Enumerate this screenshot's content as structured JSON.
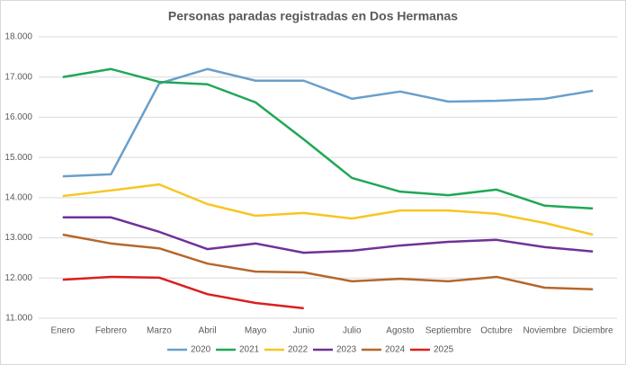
{
  "chart_data": {
    "type": "line",
    "title": "Personas paradas registradas en Dos Hermanas",
    "categories": [
      "Enero",
      "Febrero",
      "Marzo",
      "Abril",
      "Mayo",
      "Junio",
      "Julio",
      "Agosto",
      "Septiembre",
      "Octubre",
      "Noviembre",
      "Diciembre"
    ],
    "series": [
      {
        "name": "2020",
        "color": "#6a9fcb",
        "values": [
          14530,
          14580,
          16840,
          17200,
          16910,
          16910,
          16460,
          16640,
          16390,
          16410,
          16460,
          16660
        ]
      },
      {
        "name": "2021",
        "color": "#1fa855",
        "values": [
          17000,
          17200,
          16880,
          16820,
          16370,
          15450,
          14490,
          14150,
          14060,
          14200,
          13800,
          13730
        ]
      },
      {
        "name": "2022",
        "color": "#f7c623",
        "values": [
          14040,
          14180,
          14330,
          13840,
          13550,
          13620,
          13480,
          13680,
          13680,
          13600,
          13370,
          13080
        ]
      },
      {
        "name": "2023",
        "color": "#6f3198",
        "values": [
          13510,
          13510,
          13150,
          12720,
          12860,
          12630,
          12680,
          12810,
          12900,
          12950,
          12770,
          12660
        ]
      },
      {
        "name": "2024",
        "color": "#b5672b",
        "values": [
          13080,
          12860,
          12740,
          12360,
          12160,
          12140,
          11920,
          11980,
          11920,
          12030,
          11760,
          11720
        ]
      },
      {
        "name": "2025",
        "color": "#d9201e",
        "values": [
          11960,
          12030,
          12010,
          11600,
          11380,
          11250,
          null,
          null,
          null,
          null,
          null,
          null
        ]
      }
    ],
    "ylim": [
      11000,
      18000
    ],
    "yticks": [
      {
        "value": 11000,
        "label": "11.000"
      },
      {
        "value": 12000,
        "label": "12.000"
      },
      {
        "value": 13000,
        "label": "13.000"
      },
      {
        "value": 14000,
        "label": "14.000"
      },
      {
        "value": 15000,
        "label": "15.000"
      },
      {
        "value": 16000,
        "label": "16.000"
      },
      {
        "value": 17000,
        "label": "17.000"
      },
      {
        "value": 18000,
        "label": "18.000"
      }
    ],
    "grid": true,
    "legend": "bottom"
  }
}
